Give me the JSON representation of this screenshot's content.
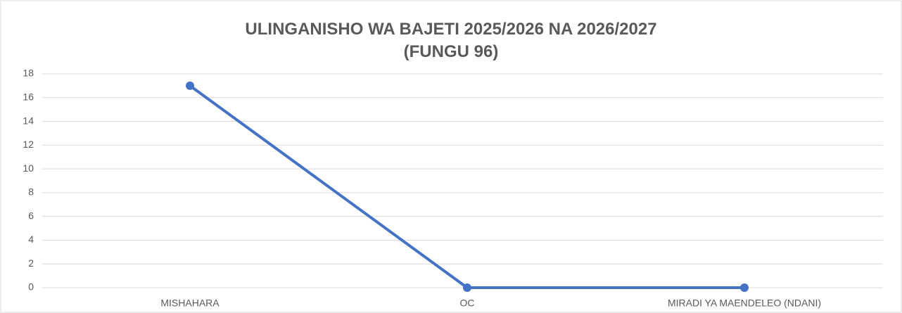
{
  "chart_data": {
    "type": "line",
    "title": "ULINGANISHO WA BAJETI 2025/2026 NA 2026/2027\n(FUNGU 96)",
    "categories": [
      "MISHAHARA",
      "OC",
      "MIRADI YA MAENDELEO (NDANI)"
    ],
    "series": [
      {
        "color": "#4472c4",
        "values": [
          17,
          0,
          0
        ]
      }
    ],
    "ylim": [
      0,
      18
    ],
    "yticks": [
      0,
      2,
      4,
      6,
      8,
      10,
      12,
      14,
      16,
      18
    ],
    "grid": true
  }
}
